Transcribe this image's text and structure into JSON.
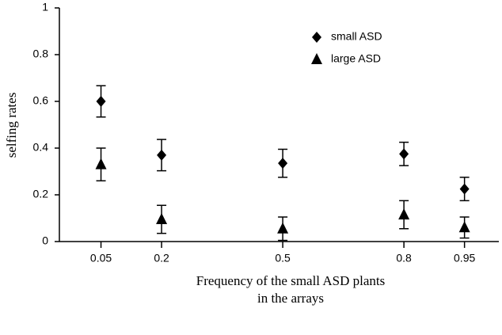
{
  "chart_data": {
    "type": "scatter",
    "xlabel": [
      "Frequency of the small ASD plants",
      "in the arrays"
    ],
    "ylabel": "selfing rates",
    "x": [
      0.05,
      0.2,
      0.5,
      0.8,
      0.95
    ],
    "series": [
      {
        "name": "small ASD",
        "color": "#000000",
        "marker": "diamond",
        "values": [
          0.6,
          0.37,
          0.335,
          0.375,
          0.225
        ],
        "errors": [
          0.067,
          0.067,
          0.06,
          0.05,
          0.05
        ]
      },
      {
        "name": "large ASD",
        "color": "#000000",
        "marker": "triangle",
        "values": [
          0.33,
          0.095,
          0.055,
          0.115,
          0.06
        ],
        "errors": [
          0.07,
          0.06,
          0.05,
          0.06,
          0.045
        ]
      }
    ],
    "xlim": [
      -0.053,
      1.035
    ],
    "xticks": [
      0.05,
      0.2,
      0.5,
      0.8,
      0.95
    ],
    "ylim": [
      0,
      1
    ],
    "yticks": [
      0,
      0.2,
      0.4,
      0.6,
      0.8,
      1
    ],
    "legend": "upper right",
    "grid": false
  }
}
